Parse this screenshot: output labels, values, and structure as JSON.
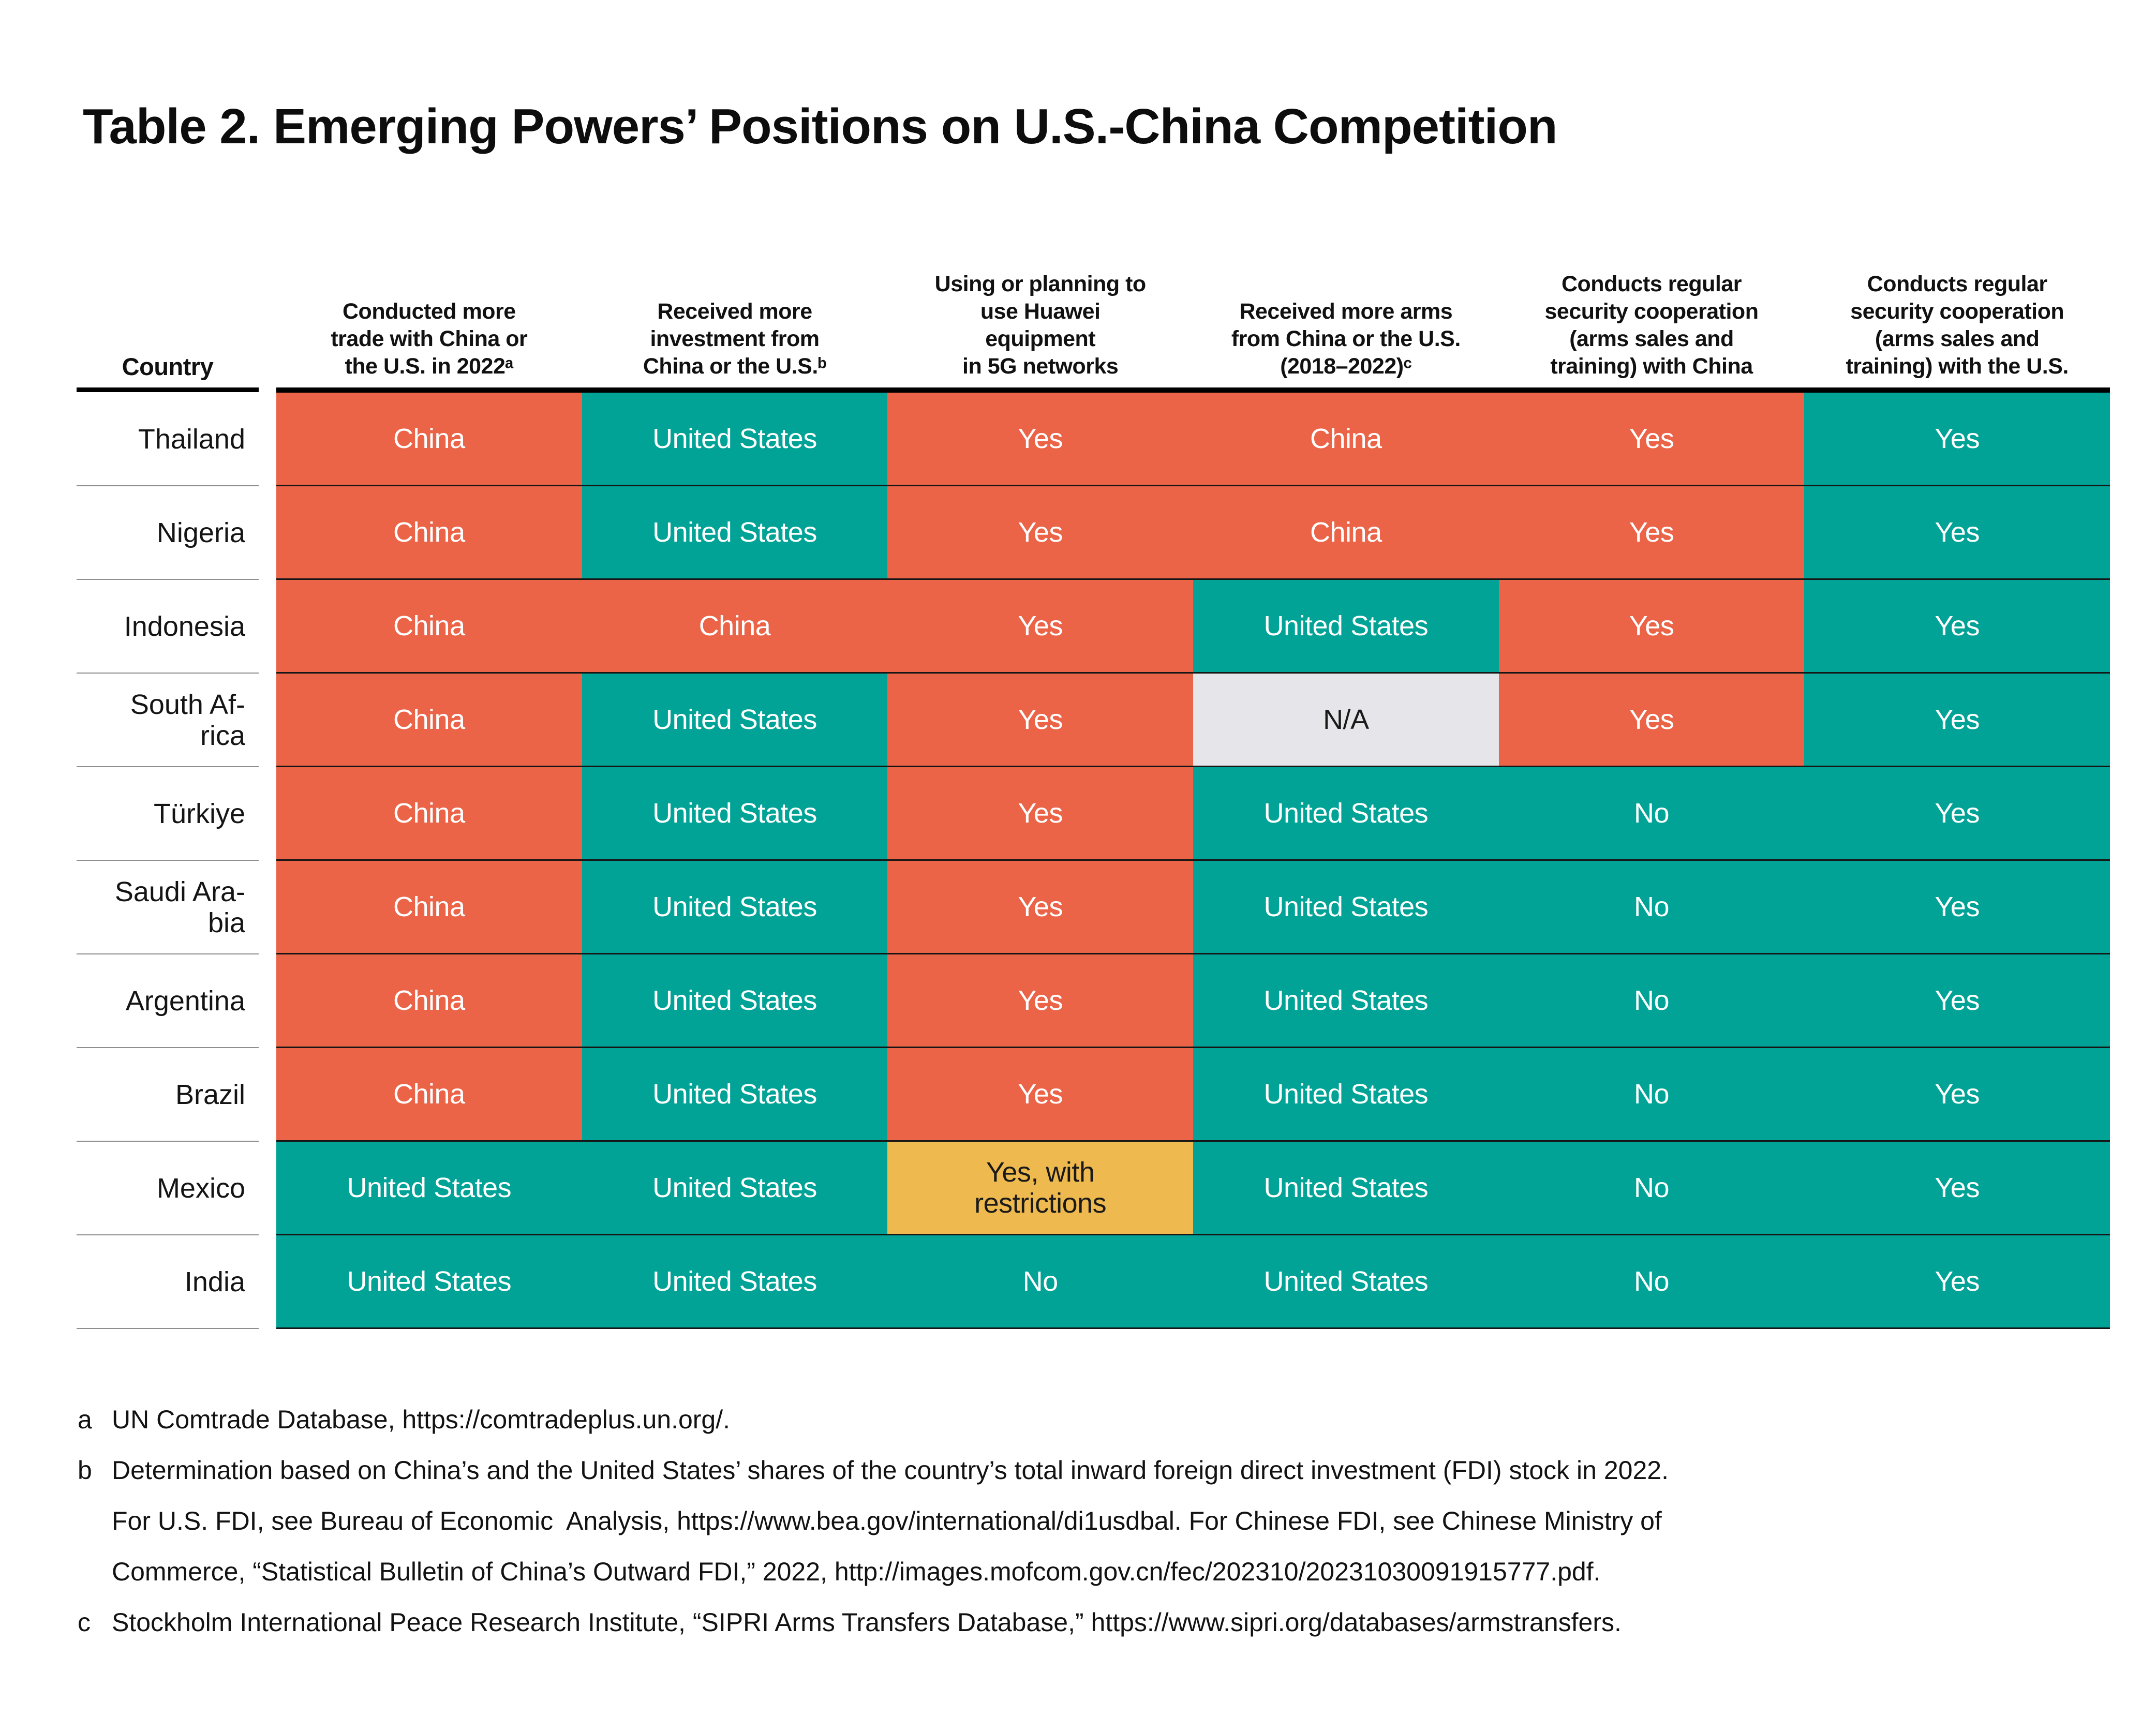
{
  "title": "Table 2. Emerging Powers’ Positions on U.S.-China Competition",
  "palette": {
    "china_orange": "#EB6448",
    "us_teal": "#00A396",
    "restricted_gold": "#EEB94E",
    "na_gray": "#E6E5E9",
    "row_line_black": "#161616",
    "country_line_gray": "#8e8e8e"
  },
  "table": {
    "country_header": "Country",
    "col_headers": [
      "Conducted more\ntrade with China or\nthe U.S. in 2022ᵃ",
      "Received more\ninvestment from\nChina or the U.S.ᵇ",
      "Using or planning to\nuse Huawei\nequipment\nin 5G networks",
      "Received more arms\nfrom China or the U.S.\n(2018–2022)ᶜ",
      "Conducts regular\nsecurity cooperation\n(arms sales  and\ntraining) with China",
      "Conducts regular\nsecurity cooperation\n(arms sales and\ntraining) with the U.S."
    ],
    "rows": [
      {
        "country": "Thailand",
        "cells": [
          {
            "text": "China",
            "color": "orange"
          },
          {
            "text": "United States",
            "color": "teal"
          },
          {
            "text": "Yes",
            "color": "orange"
          },
          {
            "text": "China",
            "color": "orange"
          },
          {
            "text": "Yes",
            "color": "orange"
          },
          {
            "text": "Yes",
            "color": "teal"
          }
        ]
      },
      {
        "country": "Nigeria",
        "cells": [
          {
            "text": "China",
            "color": "orange"
          },
          {
            "text": "United States",
            "color": "teal"
          },
          {
            "text": "Yes",
            "color": "orange"
          },
          {
            "text": "China",
            "color": "orange"
          },
          {
            "text": "Yes",
            "color": "orange"
          },
          {
            "text": "Yes",
            "color": "teal"
          }
        ]
      },
      {
        "country": "Indonesia",
        "cells": [
          {
            "text": "China",
            "color": "orange"
          },
          {
            "text": "China",
            "color": "orange"
          },
          {
            "text": "Yes",
            "color": "orange"
          },
          {
            "text": "United States",
            "color": "teal"
          },
          {
            "text": "Yes",
            "color": "orange"
          },
          {
            "text": "Yes",
            "color": "teal"
          }
        ]
      },
      {
        "country": "South Af-\nrica",
        "cells": [
          {
            "text": "China",
            "color": "orange"
          },
          {
            "text": "United States",
            "color": "teal"
          },
          {
            "text": "Yes",
            "color": "orange"
          },
          {
            "text": "N/A",
            "color": "gray"
          },
          {
            "text": "Yes",
            "color": "orange"
          },
          {
            "text": "Yes",
            "color": "teal"
          }
        ]
      },
      {
        "country": "Türkiye",
        "cells": [
          {
            "text": "China",
            "color": "orange"
          },
          {
            "text": "United States",
            "color": "teal"
          },
          {
            "text": "Yes",
            "color": "orange"
          },
          {
            "text": "United States",
            "color": "teal"
          },
          {
            "text": "No",
            "color": "teal"
          },
          {
            "text": "Yes",
            "color": "teal"
          }
        ]
      },
      {
        "country": "Saudi Ara-\nbia",
        "cells": [
          {
            "text": "China",
            "color": "orange"
          },
          {
            "text": "United States",
            "color": "teal"
          },
          {
            "text": "Yes",
            "color": "orange"
          },
          {
            "text": "United States",
            "color": "teal"
          },
          {
            "text": "No",
            "color": "teal"
          },
          {
            "text": "Yes",
            "color": "teal"
          }
        ]
      },
      {
        "country": "Argentina",
        "cells": [
          {
            "text": "China",
            "color": "orange"
          },
          {
            "text": "United States",
            "color": "teal"
          },
          {
            "text": "Yes",
            "color": "orange"
          },
          {
            "text": "United States",
            "color": "teal"
          },
          {
            "text": "No",
            "color": "teal"
          },
          {
            "text": "Yes",
            "color": "teal"
          }
        ]
      },
      {
        "country": "Brazil",
        "cells": [
          {
            "text": "China",
            "color": "orange"
          },
          {
            "text": "United States",
            "color": "teal"
          },
          {
            "text": "Yes",
            "color": "orange"
          },
          {
            "text": "United States",
            "color": "teal"
          },
          {
            "text": "No",
            "color": "teal"
          },
          {
            "text": "Yes",
            "color": "teal"
          }
        ]
      },
      {
        "country": "Mexico",
        "cells": [
          {
            "text": "United States",
            "color": "teal"
          },
          {
            "text": "United States",
            "color": "teal"
          },
          {
            "text": "Yes, with\nrestrictions",
            "color": "gold"
          },
          {
            "text": "United States",
            "color": "teal"
          },
          {
            "text": "No",
            "color": "teal"
          },
          {
            "text": "Yes",
            "color": "teal"
          }
        ]
      },
      {
        "country": "India",
        "cells": [
          {
            "text": "United States",
            "color": "teal"
          },
          {
            "text": "United States",
            "color": "teal"
          },
          {
            "text": "No",
            "color": "teal"
          },
          {
            "text": "United States",
            "color": "teal"
          },
          {
            "text": "No",
            "color": "teal"
          },
          {
            "text": "Yes",
            "color": "teal"
          }
        ]
      }
    ]
  },
  "footnotes": [
    {
      "marker": "a",
      "text": "UN Comtrade Database, https://comtradeplus.un.org/."
    },
    {
      "marker": "b",
      "text": "Determination based on China’s and the United States’ shares of the country’s total inward foreign direct investment (FDI) stock in 2022.\nFor U.S. FDI, see Bureau of Economic  Analysis, https://www.bea.gov/international/di1usdbal. For Chinese FDI, see Chinese Ministry of\nCommerce, “Statistical Bulletin of China’s Outward FDI,” 2022, http://images.mofcom.gov.cn/fec/202310/20231030091915777.pdf."
    },
    {
      "marker": "c",
      "text": "Stockholm International Peace Research Institute, “SIPRI Arms Transfers Database,” https://www.sipri.org/databases/armstransfers."
    }
  ]
}
